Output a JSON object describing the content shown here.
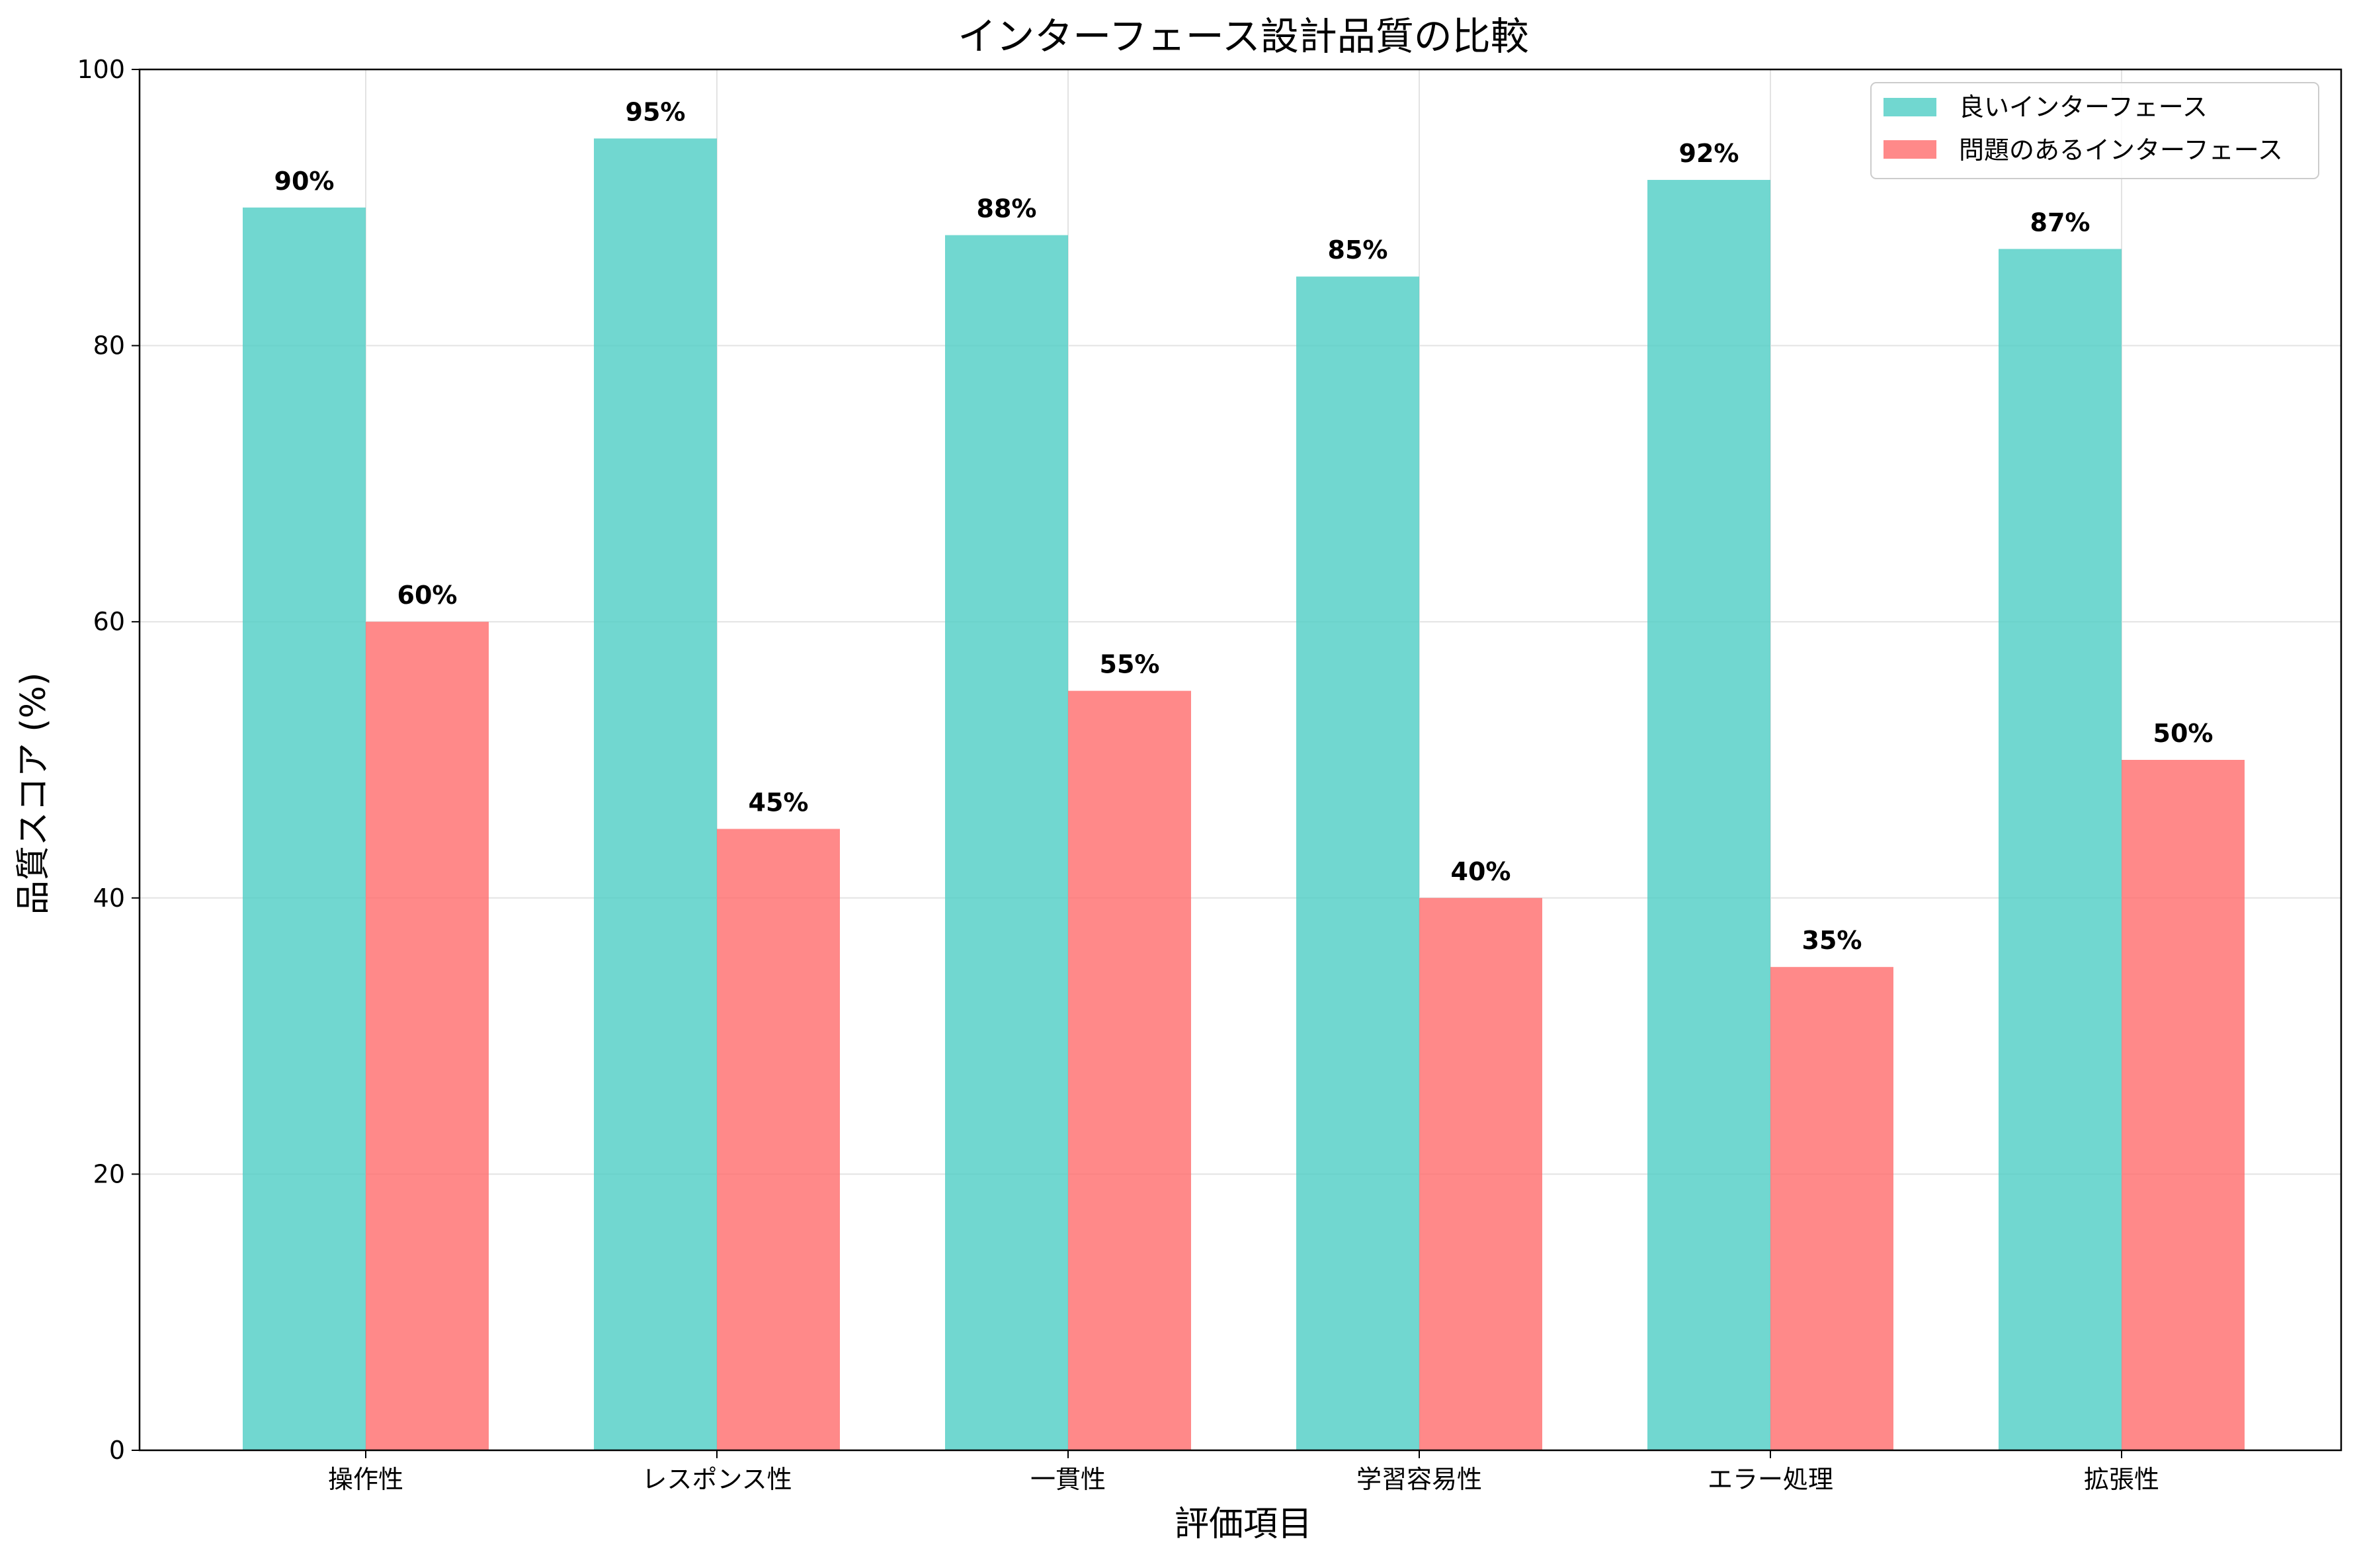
{
  "chart_data": {
    "type": "bar",
    "title": "インターフェース設計品質の比較",
    "xlabel": "評価項目",
    "ylabel": "品質スコア (%)",
    "categories": [
      "操作性",
      "レスポンス性",
      "一貫性",
      "学習容易性",
      "エラー処理",
      "拡張性"
    ],
    "series": [
      {
        "name": "良いインターフェース",
        "values": [
          90,
          95,
          88,
          85,
          92,
          87
        ],
        "color": "#4ECDC4"
      },
      {
        "name": "問題のあるインターフェース",
        "values": [
          60,
          45,
          55,
          40,
          35,
          50
        ],
        "color": "#FF6B6B"
      }
    ],
    "data_labels": [
      [
        "90%",
        "95%",
        "88%",
        "85%",
        "92%",
        "87%"
      ],
      [
        "60%",
        "45%",
        "55%",
        "40%",
        "35%",
        "50%"
      ]
    ],
    "ylim": [
      0,
      100
    ],
    "yticks": [
      0,
      20,
      40,
      60,
      80,
      100
    ],
    "ytick_labels": [
      "0",
      "20",
      "40",
      "60",
      "80",
      "100"
    ],
    "grid": true,
    "legend_position": "top-right",
    "bar_opacity": 0.8
  }
}
